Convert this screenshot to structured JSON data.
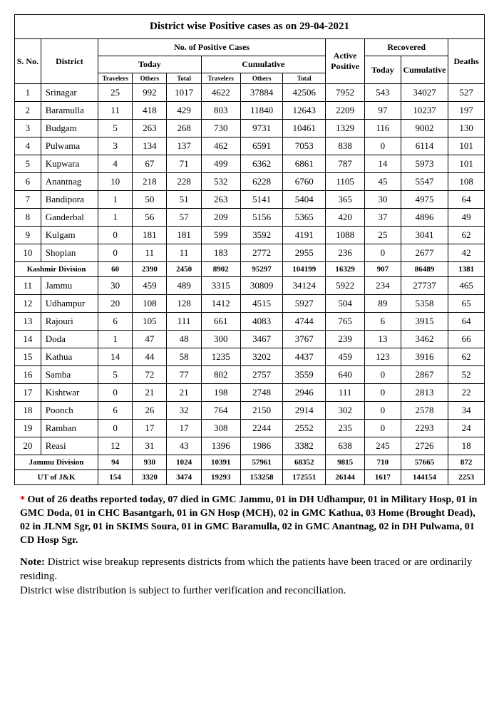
{
  "title": "District wise Positive cases as on 29-04-2021",
  "headers": {
    "sno": "S. No.",
    "district": "District",
    "positive": "No. of Positive Cases",
    "today": "Today",
    "cumulative": "Cumulative",
    "travelers": "Travelers",
    "others": "Others",
    "total": "Total",
    "active": "Active Positive",
    "recovered": "Recovered",
    "rec_today": "Today",
    "rec_cum": "Cumulative",
    "deaths": "Deaths"
  },
  "rows": [
    {
      "sno": "1",
      "district": "Srinagar",
      "tt": "25",
      "to": "992",
      "ttot": "1017",
      "ct": "4622",
      "co": "37884",
      "ctot": "42506",
      "active": "7952",
      "rt": "543",
      "rc": "34027",
      "d": "527"
    },
    {
      "sno": "2",
      "district": "Baramulla",
      "tt": "11",
      "to": "418",
      "ttot": "429",
      "ct": "803",
      "co": "11840",
      "ctot": "12643",
      "active": "2209",
      "rt": "97",
      "rc": "10237",
      "d": "197"
    },
    {
      "sno": "3",
      "district": "Budgam",
      "tt": "5",
      "to": "263",
      "ttot": "268",
      "ct": "730",
      "co": "9731",
      "ctot": "10461",
      "active": "1329",
      "rt": "116",
      "rc": "9002",
      "d": "130"
    },
    {
      "sno": "4",
      "district": "Pulwama",
      "tt": "3",
      "to": "134",
      "ttot": "137",
      "ct": "462",
      "co": "6591",
      "ctot": "7053",
      "active": "838",
      "rt": "0",
      "rc": "6114",
      "d": "101"
    },
    {
      "sno": "5",
      "district": "Kupwara",
      "tt": "4",
      "to": "67",
      "ttot": "71",
      "ct": "499",
      "co": "6362",
      "ctot": "6861",
      "active": "787",
      "rt": "14",
      "rc": "5973",
      "d": "101"
    },
    {
      "sno": "6",
      "district": "Anantnag",
      "tt": "10",
      "to": "218",
      "ttot": "228",
      "ct": "532",
      "co": "6228",
      "ctot": "6760",
      "active": "1105",
      "rt": "45",
      "rc": "5547",
      "d": "108"
    },
    {
      "sno": "7",
      "district": "Bandipora",
      "tt": "1",
      "to": "50",
      "ttot": "51",
      "ct": "263",
      "co": "5141",
      "ctot": "5404",
      "active": "365",
      "rt": "30",
      "rc": "4975",
      "d": "64"
    },
    {
      "sno": "8",
      "district": "Ganderbal",
      "tt": "1",
      "to": "56",
      "ttot": "57",
      "ct": "209",
      "co": "5156",
      "ctot": "5365",
      "active": "420",
      "rt": "37",
      "rc": "4896",
      "d": "49"
    },
    {
      "sno": "9",
      "district": "Kulgam",
      "tt": "0",
      "to": "181",
      "ttot": "181",
      "ct": "599",
      "co": "3592",
      "ctot": "4191",
      "active": "1088",
      "rt": "25",
      "rc": "3041",
      "d": "62"
    },
    {
      "sno": "10",
      "district": "Shopian",
      "tt": "0",
      "to": "11",
      "ttot": "11",
      "ct": "183",
      "co": "2772",
      "ctot": "2955",
      "active": "236",
      "rt": "0",
      "rc": "2677",
      "d": "42"
    }
  ],
  "kashmir_division": {
    "label": "Kashmir Division",
    "tt": "60",
    "to": "2390",
    "ttot": "2450",
    "ct": "8902",
    "co": "95297",
    "ctot": "104199",
    "active": "16329",
    "rt": "907",
    "rc": "86489",
    "d": "1381"
  },
  "rows2": [
    {
      "sno": "11",
      "district": "Jammu",
      "tt": "30",
      "to": "459",
      "ttot": "489",
      "ct": "3315",
      "co": "30809",
      "ctot": "34124",
      "active": "5922",
      "rt": "234",
      "rc": "27737",
      "d": "465"
    },
    {
      "sno": "12",
      "district": "Udhampur",
      "tt": "20",
      "to": "108",
      "ttot": "128",
      "ct": "1412",
      "co": "4515",
      "ctot": "5927",
      "active": "504",
      "rt": "89",
      "rc": "5358",
      "d": "65"
    },
    {
      "sno": "13",
      "district": "Rajouri",
      "tt": "6",
      "to": "105",
      "ttot": "111",
      "ct": "661",
      "co": "4083",
      "ctot": "4744",
      "active": "765",
      "rt": "6",
      "rc": "3915",
      "d": "64"
    },
    {
      "sno": "14",
      "district": "Doda",
      "tt": "1",
      "to": "47",
      "ttot": "48",
      "ct": "300",
      "co": "3467",
      "ctot": "3767",
      "active": "239",
      "rt": "13",
      "rc": "3462",
      "d": "66"
    },
    {
      "sno": "15",
      "district": "Kathua",
      "tt": "14",
      "to": "44",
      "ttot": "58",
      "ct": "1235",
      "co": "3202",
      "ctot": "4437",
      "active": "459",
      "rt": "123",
      "rc": "3916",
      "d": "62"
    },
    {
      "sno": "16",
      "district": "Samba",
      "tt": "5",
      "to": "72",
      "ttot": "77",
      "ct": "802",
      "co": "2757",
      "ctot": "3559",
      "active": "640",
      "rt": "0",
      "rc": "2867",
      "d": "52"
    },
    {
      "sno": "17",
      "district": "Kishtwar",
      "tt": "0",
      "to": "21",
      "ttot": "21",
      "ct": "198",
      "co": "2748",
      "ctot": "2946",
      "active": "111",
      "rt": "0",
      "rc": "2813",
      "d": "22"
    },
    {
      "sno": "18",
      "district": "Poonch",
      "tt": "6",
      "to": "26",
      "ttot": "32",
      "ct": "764",
      "co": "2150",
      "ctot": "2914",
      "active": "302",
      "rt": "0",
      "rc": "2578",
      "d": "34"
    },
    {
      "sno": "19",
      "district": "Ramban",
      "tt": "0",
      "to": "17",
      "ttot": "17",
      "ct": "308",
      "co": "2244",
      "ctot": "2552",
      "active": "235",
      "rt": "0",
      "rc": "2293",
      "d": "24"
    },
    {
      "sno": "20",
      "district": "Reasi",
      "tt": "12",
      "to": "31",
      "ttot": "43",
      "ct": "1396",
      "co": "1986",
      "ctot": "3382",
      "active": "638",
      "rt": "245",
      "rc": "2726",
      "d": "18"
    }
  ],
  "jammu_division": {
    "label": "Jammu Division",
    "tt": "94",
    "to": "930",
    "ttot": "1024",
    "ct": "10391",
    "co": "57961",
    "ctot": "68352",
    "active": "9815",
    "rt": "710",
    "rc": "57665",
    "d": "872"
  },
  "ut_total": {
    "label": "UT of J&K",
    "tt": "154",
    "to": "3320",
    "ttot": "3474",
    "ct": "19293",
    "co": "153258",
    "ctot": "172551",
    "active": "26144",
    "rt": "1617",
    "rc": "144154",
    "d": "2253"
  },
  "footnote_star": "*",
  "footnote": "Out of 26 deaths reported today, 07 died in GMC Jammu, 01 in DH Udhampur, 01 in Military Hosp, 01 in GMC Doda, 01 in CHC Basantgarh, 01 in GN Hosp (MCH), 02 in GMC Kathua, 03 Home (Brought Dead), 02 in JLNM Sgr, 01 in SKIMS Soura, 01 in GMC Baramulla, 02 in GMC Anantnag, 02 in DH Pulwama, 01 CD Hosp Sgr.",
  "note_label": "Note:",
  "note1": "District wise breakup represents districts from which the patients have been traced or are ordinarily residing.",
  "note2": "District wise distribution is subject to further verification and reconciliation."
}
